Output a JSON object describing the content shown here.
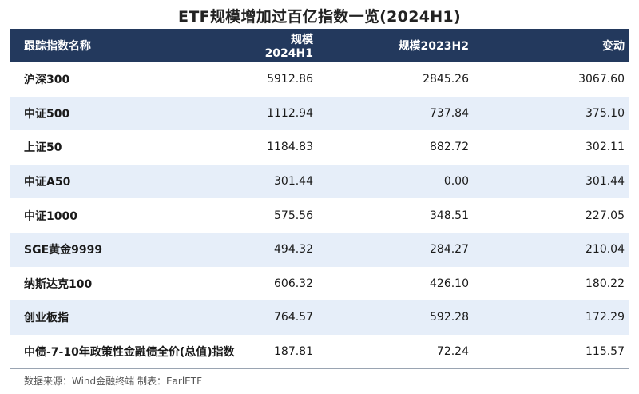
{
  "title": "ETF规模增加过百亿指数一览(2024H1)",
  "columns": [
    "跟踪指数名称",
    "规模2024H1",
    "规模2023H2",
    "变动"
  ],
  "rows": [
    {
      "name": "沪深300",
      "h1_2024": "5912.86",
      "h2_2023": "2845.26",
      "change": "3067.60"
    },
    {
      "name": "中证500",
      "h1_2024": "1112.94",
      "h2_2023": "737.84",
      "change": "375.10"
    },
    {
      "name": "上证50",
      "h1_2024": "1184.83",
      "h2_2023": "882.72",
      "change": "302.11"
    },
    {
      "name": "中证A50",
      "h1_2024": "301.44",
      "h2_2023": "0.00",
      "change": "301.44"
    },
    {
      "name": "中证1000",
      "h1_2024": "575.56",
      "h2_2023": "348.51",
      "change": "227.05"
    },
    {
      "name": "SGE黄金9999",
      "h1_2024": "494.32",
      "h2_2023": "284.27",
      "change": "210.04"
    },
    {
      "name": "纳斯达克100",
      "h1_2024": "606.32",
      "h2_2023": "426.10",
      "change": "180.22"
    },
    {
      "name": "创业板指",
      "h1_2024": "764.57",
      "h2_2023": "592.28",
      "change": "172.29"
    },
    {
      "name": "中债-7-10年政策性金融债全价(总值)指数",
      "h1_2024": "187.81",
      "h2_2023": "72.24",
      "change": "115.57"
    }
  ],
  "source": "数据来源：Wind金融终端 制表：EarlETF",
  "colors": {
    "header_bg": "#23395d",
    "alt_row_bg": "#e6eef9"
  }
}
